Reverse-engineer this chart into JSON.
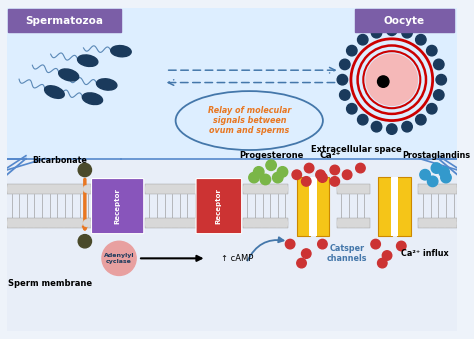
{
  "bg_color": "#eef3fa",
  "upper_bg": "#ddeeff",
  "lower_bg": "#e8eef8",
  "spermatozoa_label": "Spermatozoa",
  "oocyte_label": "Oocyte",
  "extracellular_label": "Extracellular space",
  "relay_text": "Relay of molecular\nsignals between\novum and sperms",
  "bicarbonate_label": "Bicarbonate",
  "progesterone_label": "Progesterone",
  "ca2plus_label": "Ca²⁺",
  "prostaglandins_label": "Prostaglandins",
  "sperm_membrane_label": "Sperm membrane",
  "receptor1_label": "Receptor",
  "receptor2_label": "Receptor",
  "adenylyl_label": "Adenylyl\ncyclase",
  "camp_label": "↑ cAMP",
  "catsper_label": "Catsper\nchannels",
  "ca2influx_label": "Ca²⁺ influx",
  "label_bg_purple": "#7b5ea7",
  "sperm_body_color": "#1a3a5c",
  "oocyte_pink": "#f5b8b8",
  "oocyte_red": "#cc0000",
  "receptor1_color": "#8855bb",
  "receptor2_color": "#cc3333",
  "channel_color": "#f5c518",
  "channel_edge": "#cc8800",
  "bicarbonate_dot_color": "#4a4a2a",
  "green_dot_color": "#7ab648",
  "red_dot_color": "#cc3333",
  "blue_dot_color": "#3399cc",
  "orange_arrow_color": "#e87722",
  "arrow_blue_color": "#4477aa",
  "membrane_fill": "#d8d8d8",
  "membrane_edge": "#999999",
  "adenylyl_fill": "#e8a0a0",
  "sperm_tail_color": "#4477aa"
}
